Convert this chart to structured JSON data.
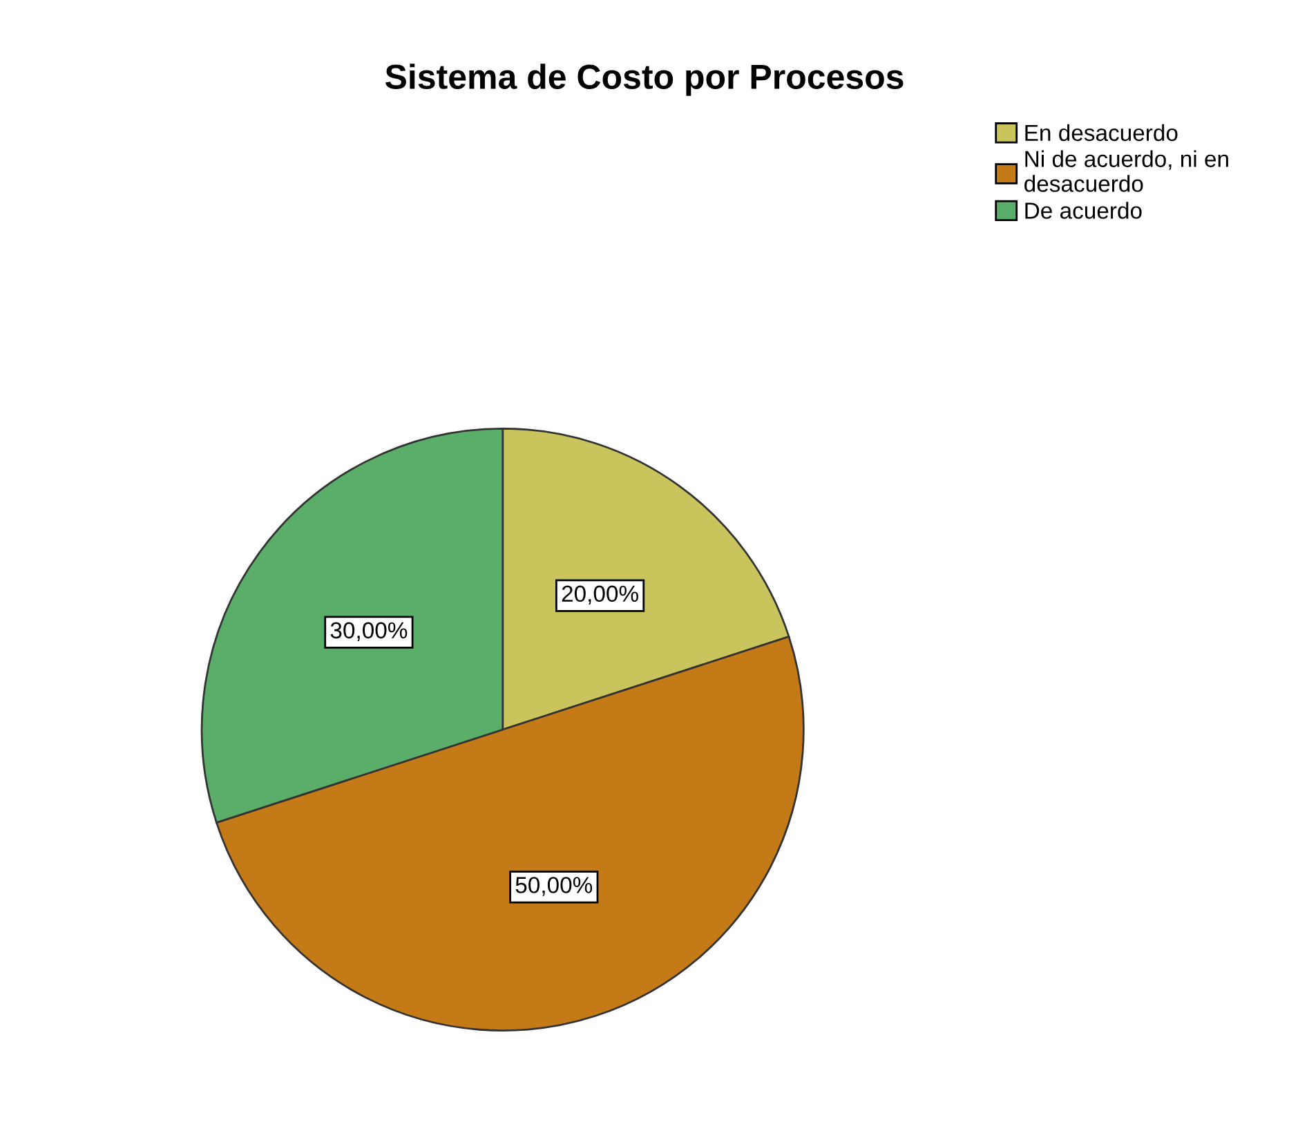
{
  "chart_data": {
    "type": "pie",
    "title": "Sistema de Costo por Procesos",
    "categories": [
      "En desacuerdo",
      "Ni de acuerdo, ni en\ndesacuerdo",
      "De acuerdo"
    ],
    "values": [
      20,
      50,
      30
    ],
    "colors": [
      "#c9c45c",
      "#c57a18",
      "#5aae6a"
    ],
    "value_labels": [
      "20,00%",
      "50,00%",
      "30,00%"
    ],
    "legend": "top right"
  }
}
